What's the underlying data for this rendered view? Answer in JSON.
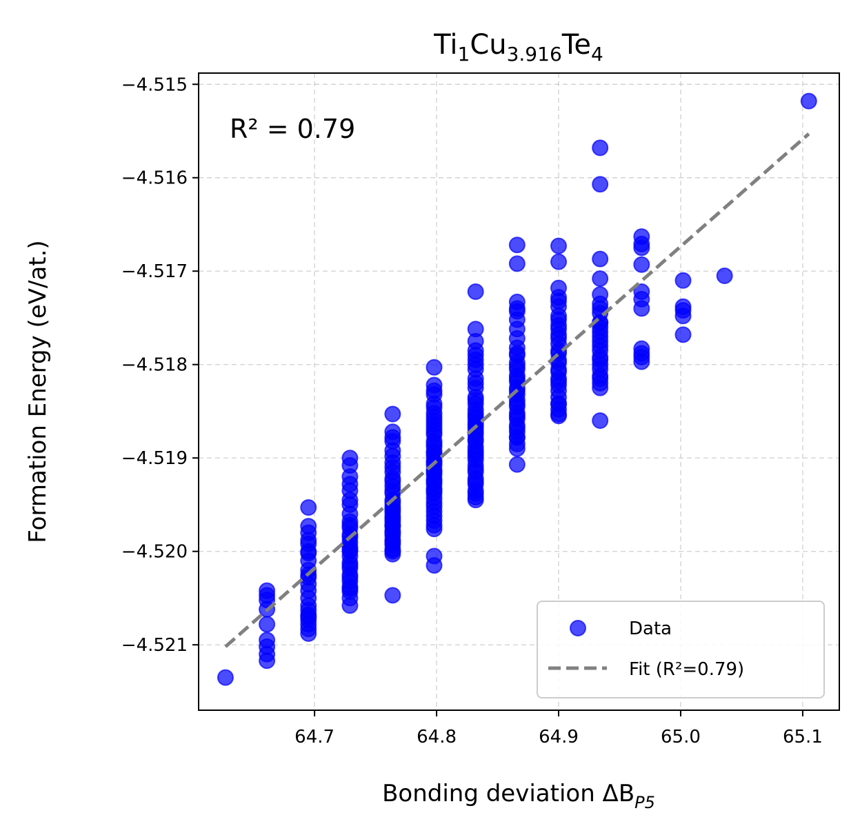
{
  "chart_data": {
    "type": "scatter",
    "title_parts": {
      "a": "Ti",
      "a_sub": "1",
      "b": "Cu",
      "b_sub": "3.916",
      "c": "Te",
      "c_sub": "4"
    },
    "xlabel": "Bonding deviation ΔB",
    "xlabel_sub": "P5",
    "ylabel": "Formation Energy (eV/at.)",
    "annotation": "R² = 0.79",
    "xlim": [
      64.605,
      65.13
    ],
    "ylim": [
      -4.5217,
      -4.51488
    ],
    "x_ticks": [
      64.7,
      64.8,
      64.9,
      65.0,
      65.1
    ],
    "x_tick_labels": [
      "64.7",
      "64.8",
      "64.9",
      "65.0",
      "65.1"
    ],
    "y_ticks": [
      -4.515,
      -4.516,
      -4.517,
      -4.518,
      -4.519,
      -4.52,
      -4.521
    ],
    "y_tick_labels": [
      "−4.515",
      "−4.516",
      "−4.517",
      "−4.518",
      "−4.519",
      "−4.520",
      "−4.521"
    ],
    "grid": true,
    "legend_position": "lower-right",
    "legend": {
      "data_label": "Data",
      "fit_label": "Fit (R²=0.79)"
    },
    "colors": {
      "data": "#0000ff",
      "fit": "#808080"
    },
    "fit_line": {
      "x": [
        64.627,
        65.105
      ],
      "y": [
        -4.52102,
        -4.51553
      ]
    },
    "series": [
      {
        "name": "Data",
        "x": [
          64.627,
          64.661,
          64.661,
          64.661,
          64.661,
          64.661,
          64.661,
          64.661,
          64.661,
          64.661,
          64.695,
          64.695,
          64.695,
          64.695,
          64.695,
          64.695,
          64.695,
          64.695,
          64.695,
          64.695,
          64.695,
          64.695,
          64.695,
          64.695,
          64.695,
          64.695,
          64.695,
          64.695,
          64.695,
          64.695,
          64.695,
          64.695,
          64.729,
          64.729,
          64.729,
          64.729,
          64.729,
          64.729,
          64.729,
          64.729,
          64.729,
          64.729,
          64.729,
          64.729,
          64.729,
          64.729,
          64.729,
          64.729,
          64.729,
          64.729,
          64.729,
          64.729,
          64.729,
          64.729,
          64.729,
          64.729,
          64.729,
          64.729,
          64.729,
          64.729,
          64.729,
          64.764,
          64.764,
          64.764,
          64.764,
          64.764,
          64.764,
          64.764,
          64.764,
          64.764,
          64.764,
          64.764,
          64.764,
          64.764,
          64.764,
          64.764,
          64.764,
          64.764,
          64.764,
          64.764,
          64.764,
          64.764,
          64.764,
          64.764,
          64.764,
          64.764,
          64.764,
          64.764,
          64.764,
          64.764,
          64.764,
          64.764,
          64.764,
          64.764,
          64.764,
          64.798,
          64.798,
          64.798,
          64.798,
          64.798,
          64.798,
          64.798,
          64.798,
          64.798,
          64.798,
          64.798,
          64.798,
          64.798,
          64.798,
          64.798,
          64.798,
          64.798,
          64.798,
          64.798,
          64.798,
          64.798,
          64.798,
          64.798,
          64.798,
          64.798,
          64.798,
          64.798,
          64.798,
          64.798,
          64.798,
          64.798,
          64.798,
          64.798,
          64.798,
          64.798,
          64.798,
          64.798,
          64.798,
          64.798,
          64.798,
          64.798,
          64.832,
          64.832,
          64.832,
          64.832,
          64.832,
          64.832,
          64.832,
          64.832,
          64.832,
          64.832,
          64.832,
          64.832,
          64.832,
          64.832,
          64.832,
          64.832,
          64.832,
          64.832,
          64.832,
          64.832,
          64.832,
          64.832,
          64.832,
          64.832,
          64.832,
          64.832,
          64.832,
          64.832,
          64.832,
          64.832,
          64.832,
          64.832,
          64.832,
          64.832,
          64.832,
          64.832,
          64.832,
          64.832,
          64.832,
          64.832,
          64.866,
          64.866,
          64.866,
          64.866,
          64.866,
          64.866,
          64.866,
          64.866,
          64.866,
          64.866,
          64.866,
          64.866,
          64.866,
          64.866,
          64.866,
          64.866,
          64.866,
          64.866,
          64.866,
          64.866,
          64.866,
          64.866,
          64.866,
          64.866,
          64.866,
          64.866,
          64.866,
          64.866,
          64.866,
          64.866,
          64.866,
          64.866,
          64.866,
          64.866,
          64.9,
          64.9,
          64.9,
          64.9,
          64.9,
          64.9,
          64.9,
          64.9,
          64.9,
          64.9,
          64.9,
          64.9,
          64.9,
          64.9,
          64.9,
          64.9,
          64.9,
          64.9,
          64.9,
          64.9,
          64.9,
          64.9,
          64.9,
          64.9,
          64.9,
          64.9,
          64.9,
          64.9,
          64.9,
          64.934,
          64.934,
          64.934,
          64.934,
          64.934,
          64.934,
          64.934,
          64.934,
          64.934,
          64.934,
          64.934,
          64.934,
          64.934,
          64.934,
          64.934,
          64.934,
          64.934,
          64.934,
          64.934,
          64.934,
          64.934,
          64.934,
          64.934,
          64.934,
          64.934,
          64.968,
          64.968,
          64.968,
          64.968,
          64.968,
          64.968,
          64.968,
          64.968,
          64.968,
          64.968,
          64.968,
          65.002,
          65.002,
          65.002,
          65.002,
          65.002,
          65.036,
          65.105
        ],
        "y": [
          -4.52135,
          -4.52042,
          -4.52047,
          -4.52052,
          -4.52062,
          -4.52078,
          -4.52095,
          -4.52102,
          -4.5211,
          -4.52117,
          -4.51953,
          -4.51973,
          -4.51988,
          -4.52,
          -4.5201,
          -4.5202,
          -4.52028,
          -4.52035,
          -4.52042,
          -4.5205,
          -4.52058,
          -4.52063,
          -4.52068,
          -4.52073,
          -4.52078,
          -4.52083,
          -4.52088,
          -4.5207,
          -4.52025,
          -4.52002,
          -4.51992,
          -4.5198,
          -4.519,
          -4.51908,
          -4.5192,
          -4.51935,
          -4.5195,
          -4.5196,
          -4.51968,
          -4.51975,
          -4.51982,
          -4.5199,
          -4.51998,
          -4.52005,
          -4.52012,
          -4.52018,
          -4.52025,
          -4.52032,
          -4.52038,
          -4.52043,
          -4.5205,
          -4.52058,
          -4.51928,
          -4.51945,
          -4.51972,
          -4.52,
          -4.52015,
          -4.52028,
          -4.5204,
          -4.51985,
          -4.51995,
          -4.51853,
          -4.51872,
          -4.51882,
          -4.51892,
          -4.51905,
          -4.51915,
          -4.51922,
          -4.5193,
          -4.51938,
          -4.51945,
          -4.51952,
          -4.51958,
          -4.51962,
          -4.51968,
          -4.51973,
          -4.51978,
          -4.51983,
          -4.51988,
          -4.51993,
          -4.51998,
          -4.52003,
          -4.51878,
          -4.51898,
          -4.5191,
          -4.51925,
          -4.51935,
          -4.51948,
          -4.51955,
          -4.51965,
          -4.51972,
          -4.5198,
          -4.5199,
          -4.52,
          -4.52047,
          -4.51803,
          -4.51822,
          -4.51832,
          -4.51842,
          -4.51852,
          -4.5186,
          -4.51868,
          -4.51875,
          -4.51882,
          -4.51888,
          -4.51893,
          -4.51898,
          -4.51903,
          -4.51908,
          -4.51913,
          -4.51918,
          -4.51923,
          -4.51928,
          -4.51933,
          -4.51938,
          -4.51943,
          -4.51948,
          -4.51952,
          -4.51957,
          -4.51962,
          -4.51967,
          -4.51972,
          -4.51976,
          -4.51828,
          -4.51846,
          -4.51856,
          -4.51864,
          -4.51872,
          -4.51885,
          -4.51895,
          -4.51905,
          -4.51915,
          -4.51925,
          -4.51935,
          -4.52005,
          -4.52015,
          -4.51722,
          -4.51762,
          -4.51775,
          -4.51785,
          -4.51795,
          -4.51805,
          -4.51815,
          -4.51825,
          -4.51835,
          -4.51842,
          -4.51848,
          -4.51855,
          -4.51862,
          -4.51868,
          -4.51875,
          -4.51882,
          -4.51888,
          -4.51895,
          -4.51902,
          -4.51908,
          -4.51915,
          -4.51922,
          -4.51928,
          -4.51935,
          -4.51942,
          -4.51945,
          -4.51938,
          -4.51925,
          -4.51912,
          -4.51898,
          -4.5188,
          -4.51865,
          -4.51852,
          -4.51838,
          -4.5182,
          -4.518,
          -4.5179,
          -4.51858,
          -4.51872,
          -4.51892,
          -4.51672,
          -4.51692,
          -4.51733,
          -4.51743,
          -4.51752,
          -4.51762,
          -4.51772,
          -4.51782,
          -4.5179,
          -4.51798,
          -4.51805,
          -4.51812,
          -4.51818,
          -4.51825,
          -4.51832,
          -4.51838,
          -4.51845,
          -4.51852,
          -4.51858,
          -4.51865,
          -4.51872,
          -4.51878,
          -4.51885,
          -4.5189,
          -4.51907,
          -4.51815,
          -4.51828,
          -4.51842,
          -4.51855,
          -4.51868,
          -4.51878,
          -4.51802,
          -4.51788,
          -4.5174,
          -4.51673,
          -4.5169,
          -4.51718,
          -4.51728,
          -4.51738,
          -4.51748,
          -4.51758,
          -4.51768,
          -4.51778,
          -4.51788,
          -4.51798,
          -4.51808,
          -4.51815,
          -4.51822,
          -4.51828,
          -4.51835,
          -4.51842,
          -4.51848,
          -4.51855,
          -4.51818,
          -4.51795,
          -4.51772,
          -4.51752,
          -4.51732,
          -4.51762,
          -4.51785,
          -4.51805,
          -4.51842,
          -4.51853,
          -4.51568,
          -4.51607,
          -4.51687,
          -4.51708,
          -4.51725,
          -4.51735,
          -4.51745,
          -4.51755,
          -4.51765,
          -4.51775,
          -4.51785,
          -4.51795,
          -4.51805,
          -4.51815,
          -4.51825,
          -4.5176,
          -4.5174,
          -4.5177,
          -4.51792,
          -4.518,
          -4.51812,
          -4.5182,
          -4.51755,
          -4.5178,
          -4.5186,
          -4.51663,
          -4.51675,
          -4.51693,
          -4.51722,
          -4.5173,
          -4.5174,
          -4.51783,
          -4.51788,
          -4.51792,
          -4.51797,
          -4.51671,
          -4.5171,
          -4.51738,
          -4.51748,
          -4.51768,
          -4.51742,
          -4.51705,
          -4.51518
        ]
      }
    ]
  }
}
